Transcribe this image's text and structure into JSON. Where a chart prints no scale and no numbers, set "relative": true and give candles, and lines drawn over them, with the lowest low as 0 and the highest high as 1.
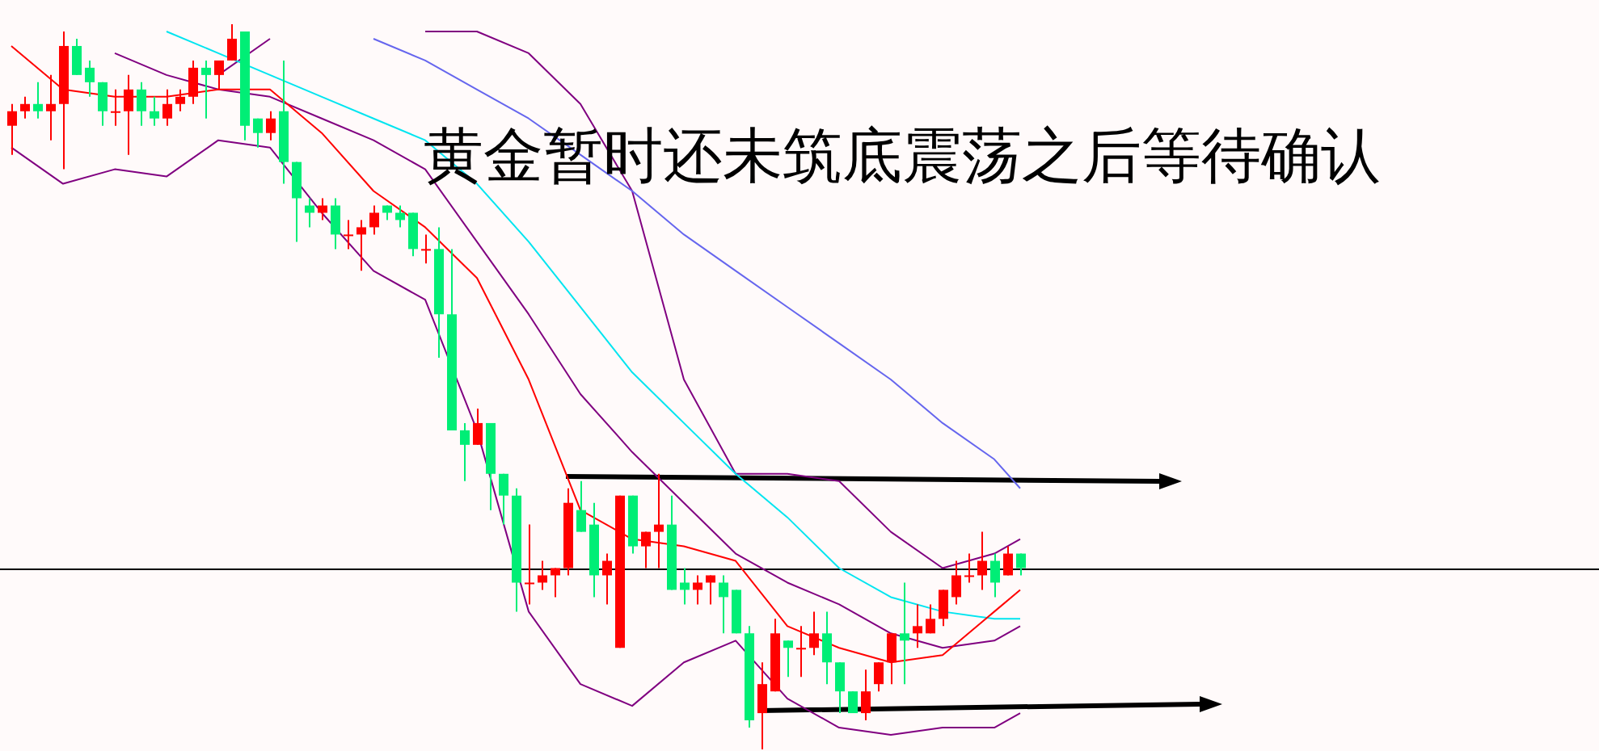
{
  "chart_data": {
    "type": "candlestick",
    "title": "黄金暂时还未筑底震荡之后等待确认",
    "relative": true,
    "legend": false,
    "tick_labels": false,
    "categories": [
      null,
      null,
      null,
      null,
      null,
      null,
      null,
      null,
      null,
      null,
      null,
      null,
      null,
      null,
      null,
      null,
      null,
      null,
      null,
      null,
      null,
      null,
      null,
      null,
      null,
      null,
      null,
      null,
      null,
      null,
      null,
      null,
      null,
      null,
      null,
      null,
      null,
      null,
      null,
      null,
      null,
      null,
      null,
      null,
      null,
      null,
      null,
      null,
      null,
      null,
      null,
      null,
      null,
      null,
      null,
      null,
      null,
      null,
      null,
      null,
      null,
      null,
      null,
      null,
      null,
      null,
      null,
      null,
      null,
      null,
      null,
      null,
      null,
      null,
      null,
      null,
      null,
      null,
      null
    ],
    "ohlc": [
      [
        0.86,
        0.89,
        0.82,
        0.88
      ],
      [
        0.88,
        0.9,
        0.87,
        0.89
      ],
      [
        0.89,
        0.92,
        0.87,
        0.88
      ],
      [
        0.88,
        0.93,
        0.84,
        0.89
      ],
      [
        0.89,
        0.99,
        0.8,
        0.97
      ],
      [
        0.97,
        0.98,
        0.93,
        0.93
      ],
      [
        0.94,
        0.95,
        0.9,
        0.92
      ],
      [
        0.92,
        0.92,
        0.86,
        0.88
      ],
      [
        0.88,
        0.91,
        0.86,
        0.88
      ],
      [
        0.88,
        0.93,
        0.82,
        0.91
      ],
      [
        0.91,
        0.92,
        0.86,
        0.88
      ],
      [
        0.88,
        0.9,
        0.86,
        0.87
      ],
      [
        0.87,
        0.91,
        0.86,
        0.89
      ],
      [
        0.89,
        0.91,
        0.88,
        0.9
      ],
      [
        0.9,
        0.95,
        0.89,
        0.94
      ],
      [
        0.94,
        0.95,
        0.87,
        0.93
      ],
      [
        0.93,
        0.95,
        0.91,
        0.95
      ],
      [
        0.95,
        1,
        0.95,
        0.98
      ],
      [
        0.99,
        0.99,
        0.84,
        0.86
      ],
      [
        0.87,
        0.87,
        0.83,
        0.85
      ],
      [
        0.85,
        0.88,
        0.84,
        0.87
      ],
      [
        0.88,
        0.95,
        0.78,
        0.81
      ],
      [
        0.81,
        0.81,
        0.7,
        0.76
      ],
      [
        0.75,
        0.76,
        0.72,
        0.74
      ],
      [
        0.74,
        0.76,
        0.73,
        0.75
      ],
      [
        0.75,
        0.76,
        0.69,
        0.71
      ],
      [
        0.71,
        0.73,
        0.69,
        0.71
      ],
      [
        0.71,
        0.73,
        0.66,
        0.72
      ],
      [
        0.72,
        0.75,
        0.71,
        0.74
      ],
      [
        0.75,
        0.75,
        0.73,
        0.74
      ],
      [
        0.74,
        0.75,
        0.72,
        0.73
      ],
      [
        0.74,
        0.74,
        0.68,
        0.69
      ],
      [
        0.69,
        0.71,
        0.67,
        0.69
      ],
      [
        0.69,
        0.72,
        0.54,
        0.6
      ],
      [
        0.6,
        0.69,
        0.44,
        0.44
      ],
      [
        0.44,
        0.45,
        0.37,
        0.42
      ],
      [
        0.42,
        0.47,
        0.42,
        0.45
      ],
      [
        0.45,
        0.45,
        0.33,
        0.38
      ],
      [
        0.38,
        0.38,
        0.31,
        0.35
      ],
      [
        0.35,
        0.36,
        0.19,
        0.23
      ],
      [
        0.23,
        0.31,
        0.2,
        0.23
      ],
      [
        0.23,
        0.26,
        0.22,
        0.24
      ],
      [
        0.24,
        0.25,
        0.21,
        0.25
      ],
      [
        0.25,
        0.36,
        0.24,
        0.34
      ],
      [
        0.33,
        0.37,
        0.3,
        0.3
      ],
      [
        0.31,
        0.34,
        0.21,
        0.24
      ],
      [
        0.24,
        0.27,
        0.2,
        0.26
      ],
      [
        0.14,
        0.35,
        0.14,
        0.35
      ],
      [
        0.35,
        0.35,
        0.27,
        0.28
      ],
      [
        0.28,
        0.3,
        0.25,
        0.3
      ],
      [
        0.3,
        0.38,
        0.25,
        0.31
      ],
      [
        0.31,
        0.35,
        0.22,
        0.22
      ],
      [
        0.23,
        0.25,
        0.2,
        0.22
      ],
      [
        0.22,
        0.24,
        0.2,
        0.23
      ],
      [
        0.23,
        0.24,
        0.2,
        0.24
      ],
      [
        0.23,
        0.24,
        0.16,
        0.21
      ],
      [
        0.22,
        0.22,
        0.16,
        0.16
      ],
      [
        0.16,
        0.17,
        0.03,
        0.04
      ],
      [
        0.05,
        0.12,
        0,
        0.09
      ],
      [
        0.08,
        0.18,
        0.08,
        0.16
      ],
      [
        0.15,
        0.15,
        0.1,
        0.14
      ],
      [
        0.14,
        0.17,
        0.1,
        0.14
      ],
      [
        0.14,
        0.19,
        0.13,
        0.16
      ],
      [
        0.16,
        0.19,
        0.09,
        0.12
      ],
      [
        0.12,
        0.12,
        0.05,
        0.08
      ],
      [
        0.08,
        0.08,
        0.05,
        0.05
      ],
      [
        0.05,
        0.11,
        0.04,
        0.08
      ],
      [
        0.09,
        0.12,
        0.08,
        0.12
      ],
      [
        0.12,
        0.16,
        0.09,
        0.16
      ],
      [
        0.16,
        0.23,
        0.09,
        0.15
      ],
      [
        0.16,
        0.2,
        0.14,
        0.17
      ],
      [
        0.16,
        0.2,
        0.16,
        0.18
      ],
      [
        0.18,
        0.22,
        0.17,
        0.22
      ],
      [
        0.21,
        0.26,
        0.2,
        0.24
      ],
      [
        0.24,
        0.27,
        0.23,
        0.24
      ],
      [
        0.24,
        0.3,
        0.22,
        0.26
      ],
      [
        0.26,
        0.27,
        0.21,
        0.23
      ],
      [
        0.24,
        0.28,
        0.24,
        0.27
      ],
      [
        0.27,
        0.27,
        0.24,
        0.25
      ]
    ],
    "series": [
      {
        "type": "line",
        "color": "#ff0000",
        "values": [
          0.97,
          null,
          null,
          null,
          0.91,
          null,
          null,
          null,
          0.9,
          null,
          null,
          null,
          0.9,
          null,
          null,
          null,
          0.91,
          null,
          null,
          null,
          0.91,
          null,
          null,
          null,
          0.85,
          null,
          null,
          null,
          0.77,
          null,
          null,
          null,
          0.72,
          null,
          null,
          null,
          0.65,
          null,
          null,
          null,
          0.51,
          null,
          null,
          null,
          0.33,
          null,
          null,
          null,
          0.29,
          null,
          null,
          null,
          0.28,
          null,
          null,
          null,
          0.26,
          null,
          null,
          null,
          0.17,
          null,
          null,
          null,
          0.14,
          null,
          null,
          null,
          0.12,
          null,
          null,
          null,
          0.13,
          null,
          null,
          null,
          0.19,
          null,
          0.22
        ]
      },
      {
        "type": "line",
        "color": "#00e5f0",
        "values": [
          null,
          null,
          null,
          null,
          null,
          null,
          null,
          null,
          null,
          null,
          null,
          null,
          0.99,
          null,
          null,
          null,
          0.96,
          null,
          null,
          null,
          0.93,
          null,
          null,
          null,
          0.9,
          null,
          null,
          null,
          0.87,
          null,
          null,
          null,
          0.84,
          null,
          null,
          null,
          0.78,
          null,
          null,
          null,
          0.7,
          null,
          null,
          null,
          0.61,
          null,
          null,
          null,
          0.52,
          null,
          null,
          null,
          0.45,
          null,
          null,
          null,
          0.38,
          null,
          null,
          null,
          0.32,
          null,
          null,
          null,
          0.25,
          null,
          null,
          null,
          0.21,
          null,
          null,
          null,
          0.19,
          null,
          null,
          null,
          0.18,
          null,
          0.18
        ]
      },
      {
        "type": "line",
        "color": "#6666ee",
        "values": [
          null,
          null,
          null,
          null,
          null,
          null,
          null,
          null,
          null,
          null,
          null,
          null,
          null,
          null,
          null,
          null,
          null,
          null,
          null,
          null,
          null,
          null,
          null,
          null,
          null,
          null,
          null,
          null,
          0.98,
          null,
          null,
          null,
          0.95,
          null,
          null,
          null,
          0.91,
          null,
          null,
          null,
          0.87,
          null,
          null,
          null,
          0.82,
          null,
          null,
          null,
          0.77,
          null,
          null,
          null,
          0.71,
          null,
          null,
          null,
          0.66,
          null,
          null,
          null,
          0.61,
          null,
          null,
          null,
          0.56,
          null,
          null,
          null,
          0.51,
          null,
          null,
          null,
          0.45,
          null,
          null,
          null,
          0.4,
          null,
          0.36
        ]
      },
      {
        "type": "line",
        "color": "#800080",
        "values": [
          null,
          null,
          null,
          null,
          null,
          null,
          null,
          null,
          null,
          null,
          null,
          null,
          null,
          null,
          null,
          null,
          0.93,
          null,
          null,
          null,
          0.98,
          null,
          null,
          null,
          null,
          null,
          null,
          null,
          null,
          null,
          null,
          null,
          0.99,
          null,
          null,
          null,
          0.99,
          null,
          null,
          null,
          0.96,
          null,
          null,
          null,
          0.89,
          null,
          null,
          null,
          0.77,
          null,
          null,
          null,
          0.51,
          null,
          null,
          null,
          0.38,
          null,
          null,
          null,
          0.38,
          null,
          null,
          null,
          0.37,
          null,
          null,
          null,
          0.3,
          null,
          null,
          null,
          0.25,
          null,
          null,
          null,
          0.27,
          null,
          0.29
        ]
      },
      {
        "type": "line",
        "color": "#800080",
        "values": [
          null,
          null,
          null,
          null,
          null,
          null,
          null,
          null,
          0.96,
          null,
          null,
          null,
          0.93,
          null,
          null,
          null,
          0.91,
          null,
          null,
          null,
          0.9,
          null,
          null,
          null,
          0.87,
          null,
          null,
          null,
          0.84,
          null,
          null,
          null,
          0.8,
          null,
          null,
          null,
          0.7,
          null,
          null,
          null,
          0.6,
          null,
          null,
          null,
          0.49,
          null,
          null,
          null,
          0.41,
          null,
          null,
          null,
          0.34,
          null,
          null,
          null,
          0.27,
          null,
          null,
          null,
          0.23,
          null,
          null,
          null,
          0.2,
          null,
          null,
          null,
          0.16,
          null,
          null,
          null,
          0.14,
          null,
          null,
          null,
          0.15,
          null,
          0.17
        ]
      },
      {
        "type": "line",
        "color": "#800080",
        "values": [
          0.83,
          null,
          null,
          null,
          0.78,
          null,
          null,
          null,
          0.8,
          null,
          null,
          null,
          0.79,
          null,
          null,
          null,
          0.84,
          null,
          null,
          null,
          0.83,
          null,
          null,
          null,
          0.74,
          null,
          null,
          null,
          0.66,
          null,
          null,
          null,
          0.62,
          null,
          null,
          null,
          0.44,
          null,
          null,
          null,
          0.19,
          null,
          null,
          null,
          0.09,
          null,
          null,
          null,
          0.06,
          null,
          null,
          null,
          0.12,
          null,
          null,
          null,
          0.15,
          null,
          null,
          null,
          0.07,
          null,
          null,
          null,
          0.03,
          null,
          null,
          null,
          0.02,
          null,
          null,
          null,
          0.03,
          null,
          null,
          null,
          0.03,
          null,
          0.05
        ]
      }
    ],
    "ref_lines": [
      {
        "axis": "y",
        "value": 0.25,
        "color": "#000000"
      }
    ]
  }
}
